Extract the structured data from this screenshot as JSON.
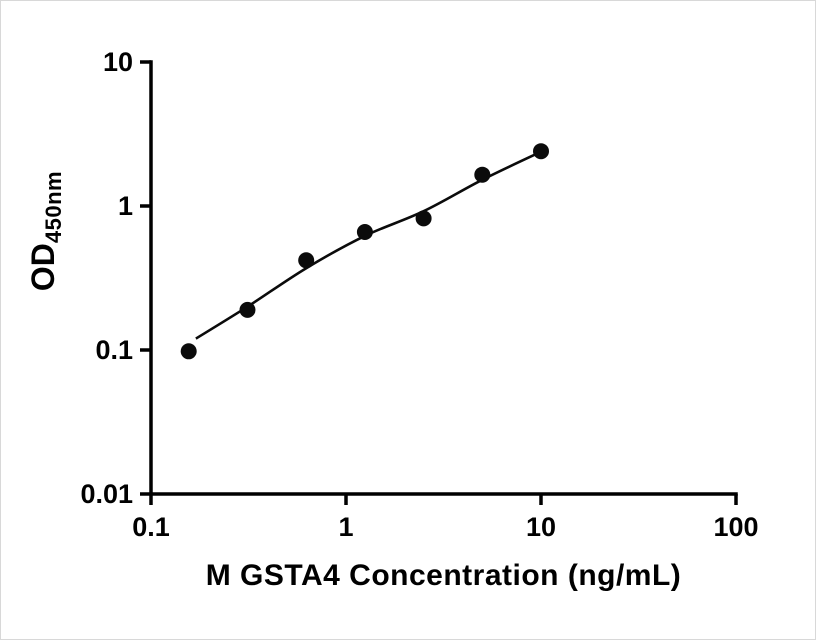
{
  "figure": {
    "background": "#ffffff",
    "border_color": "#d8d8d8"
  },
  "chart_data": {
    "type": "scatter",
    "title": "",
    "xlabel": "M GSTA4 Concentration (ng/mL)",
    "ylabel": "OD",
    "ylabel_subscript": "450nm",
    "x_scale": "log10",
    "y_scale": "log10",
    "xlim": [
      0.1,
      100
    ],
    "ylim": [
      0.01,
      10
    ],
    "x_tick_labels": [
      "0.1",
      "1",
      "10",
      "100"
    ],
    "y_tick_labels": [
      "0.01",
      "0.1",
      "1",
      "10"
    ],
    "grid": false,
    "legend": "none",
    "axis_color": "#000000",
    "series": [
      {
        "name": "standard-points",
        "type": "scatter",
        "marker": "filled-circle",
        "color": "#0b0b0b",
        "x": [
          0.156,
          0.3125,
          0.625,
          1.25,
          2.5,
          5,
          10
        ],
        "y": [
          0.098,
          0.19,
          0.42,
          0.66,
          0.82,
          1.65,
          2.4
        ]
      },
      {
        "name": "fit-curve",
        "type": "line",
        "color": "#0b0b0b",
        "x": [
          0.17,
          0.3125,
          0.625,
          1.25,
          2.5,
          5,
          10
        ],
        "y": [
          0.12,
          0.2,
          0.37,
          0.62,
          0.92,
          1.52,
          2.38
        ]
      }
    ]
  }
}
